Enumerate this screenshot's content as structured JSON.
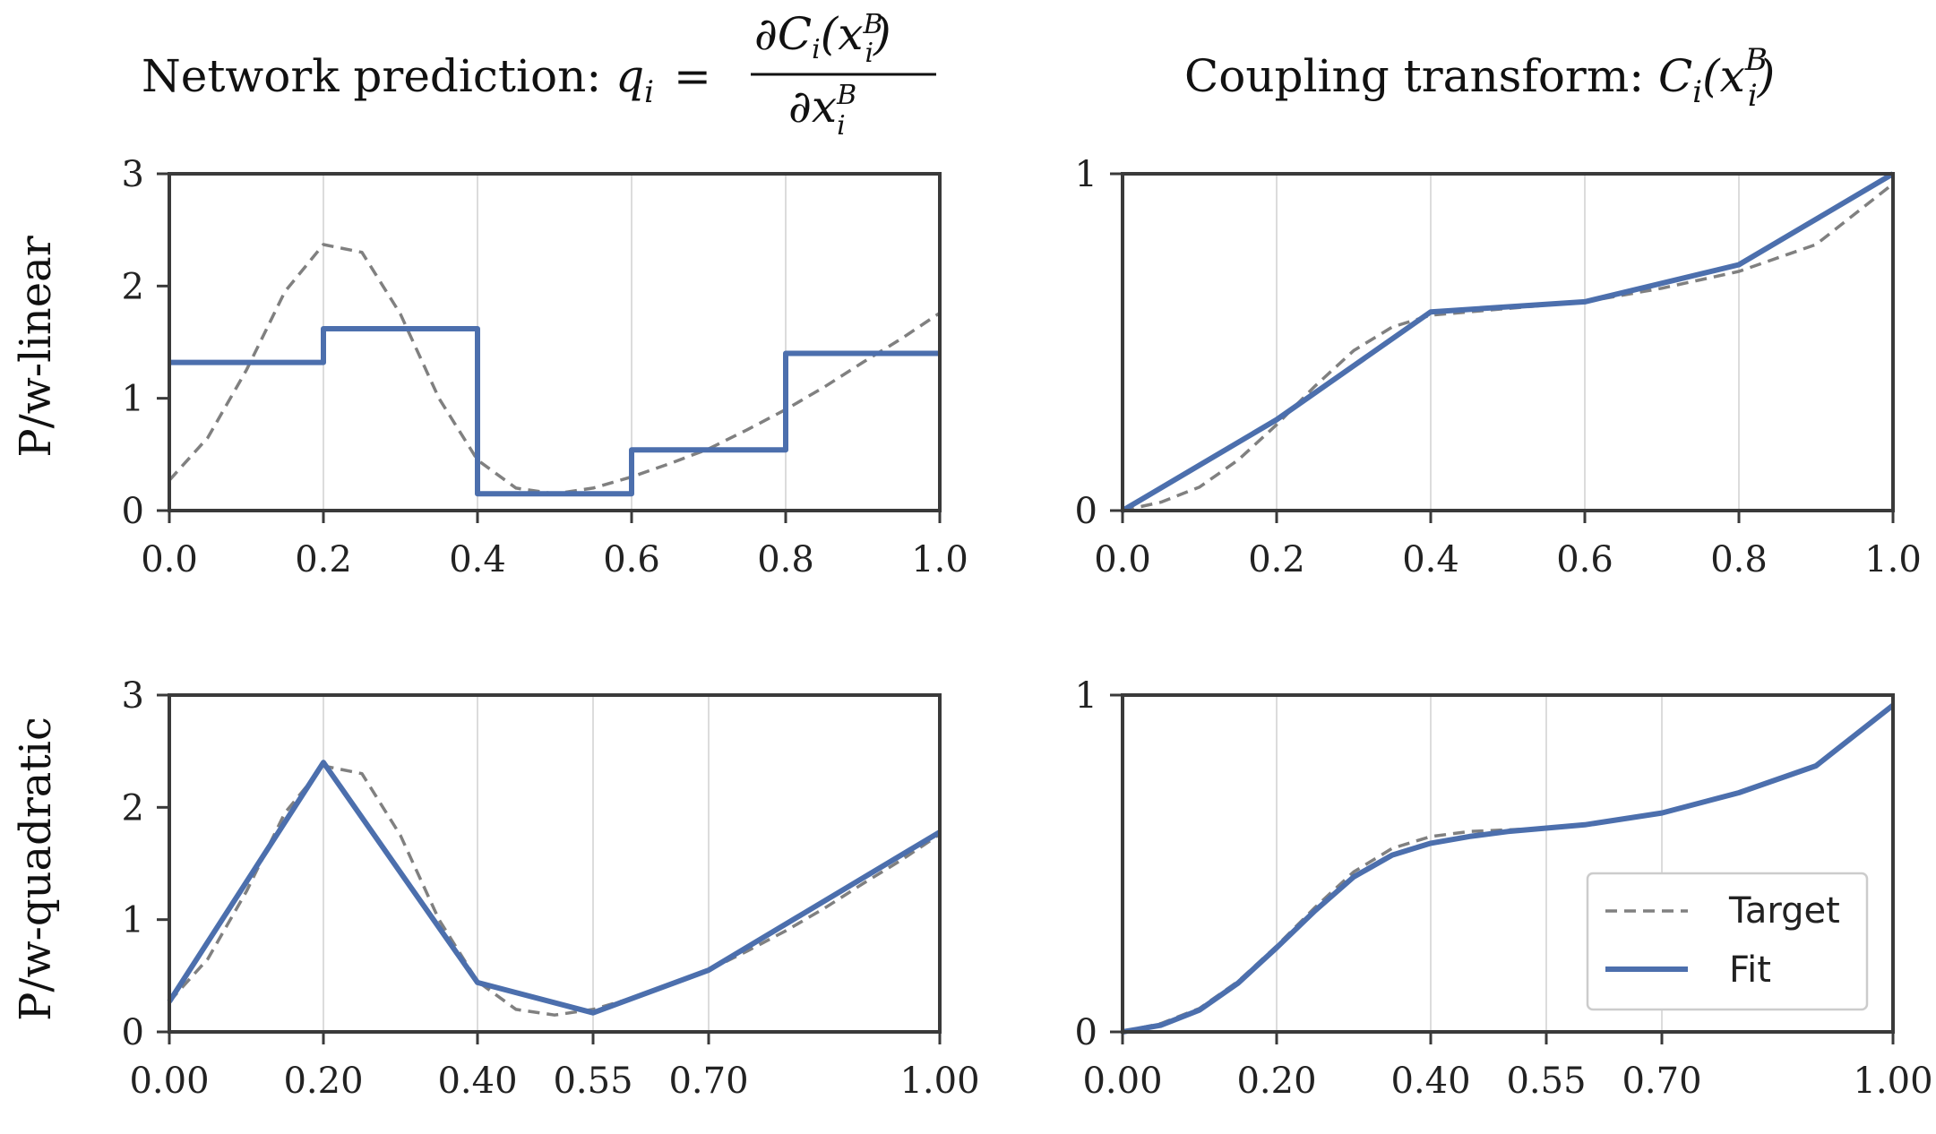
{
  "colors": {
    "fit": "#4c6fad",
    "target": "#808080",
    "axis": "#3a3a3a",
    "grid": "#dcdcdc"
  },
  "titles": {
    "left_prefix": "Network prediction: ",
    "left_lhs": "q",
    "left_sub": "i",
    "left_eq": "=",
    "left_num": "∂C",
    "left_num_sub": "i",
    "left_num_x": "(x",
    "left_num_sup": "B",
    "left_num_xsub": "i",
    "left_num_close": ")",
    "left_den": "∂x",
    "left_den_sup": "B",
    "left_den_sub": "i",
    "right_prefix": "Coupling transform: ",
    "right_c": "C",
    "right_c_sub": "i",
    "right_open": "(x",
    "right_sup": "B",
    "right_xsub": "i",
    "right_close": ")"
  },
  "row_labels": {
    "top": "P/w-linear",
    "bottom": "P/w-quadratic"
  },
  "legend": {
    "target_label": "Target",
    "fit_label": "Fit"
  },
  "chart_data": [
    {
      "id": "pl-pdf",
      "type": "line",
      "xlim": [
        0,
        1
      ],
      "ylim": [
        0,
        3
      ],
      "xticks": [
        0,
        0.2,
        0.4,
        0.6,
        0.8,
        1.0
      ],
      "xtick_labels": [
        "0.0",
        "0.2",
        "0.4",
        "0.6",
        "0.8",
        "1.0"
      ],
      "yticks": [
        0,
        1,
        2,
        3
      ],
      "ytick_labels": [
        "0",
        "1",
        "2",
        "3"
      ],
      "grid_x": [
        0.2,
        0.4,
        0.6,
        0.8
      ],
      "series": [
        {
          "name": "Target",
          "style": "dashed",
          "x": [
            0.0,
            0.05,
            0.1,
            0.15,
            0.2,
            0.25,
            0.3,
            0.35,
            0.4,
            0.45,
            0.5,
            0.55,
            0.6,
            0.65,
            0.7,
            0.75,
            0.8,
            0.85,
            0.9,
            0.95,
            1.0
          ],
          "y": [
            0.27,
            0.65,
            1.25,
            1.95,
            2.37,
            2.3,
            1.75,
            1.0,
            0.45,
            0.2,
            0.15,
            0.2,
            0.3,
            0.42,
            0.55,
            0.72,
            0.9,
            1.1,
            1.32,
            1.53,
            1.76
          ]
        },
        {
          "name": "Fit",
          "style": "solid",
          "x": [
            0.0,
            0.2,
            0.2,
            0.4,
            0.4,
            0.6,
            0.6,
            0.8,
            0.8,
            1.0
          ],
          "y": [
            1.32,
            1.32,
            1.62,
            1.62,
            0.15,
            0.15,
            0.54,
            0.54,
            1.4,
            1.4
          ]
        }
      ]
    },
    {
      "id": "pl-cdf",
      "type": "line",
      "xlim": [
        0,
        1
      ],
      "ylim": [
        0,
        1
      ],
      "xticks": [
        0,
        0.2,
        0.4,
        0.6,
        0.8,
        1.0
      ],
      "xtick_labels": [
        "0.0",
        "0.2",
        "0.4",
        "0.6",
        "0.8",
        "1.0"
      ],
      "yticks": [
        0,
        1
      ],
      "ytick_labels": [
        "0",
        "1"
      ],
      "grid_x": [
        0.2,
        0.4,
        0.6,
        0.8
      ],
      "series": [
        {
          "name": "Target",
          "style": "dashed",
          "x": [
            0.0,
            0.05,
            0.1,
            0.15,
            0.2,
            0.25,
            0.3,
            0.35,
            0.4,
            0.5,
            0.6,
            0.7,
            0.8,
            0.9,
            1.0
          ],
          "y": [
            0.0,
            0.025,
            0.07,
            0.15,
            0.255,
            0.37,
            0.475,
            0.545,
            0.58,
            0.6,
            0.62,
            0.66,
            0.71,
            0.79,
            0.97
          ]
        },
        {
          "name": "Fit",
          "style": "solid",
          "x": [
            0.0,
            0.2,
            0.4,
            0.6,
            0.8,
            1.0
          ],
          "y": [
            0.0,
            0.27,
            0.59,
            0.62,
            0.73,
            1.0
          ]
        }
      ]
    },
    {
      "id": "pq-pdf",
      "type": "line",
      "xlim": [
        0,
        1
      ],
      "ylim": [
        0,
        3
      ],
      "xticks": [
        0,
        0.2,
        0.4,
        0.55,
        0.7,
        1.0
      ],
      "xtick_labels": [
        "0.00",
        "0.20",
        "0.40",
        "0.55",
        "0.70",
        "1.00"
      ],
      "yticks": [
        0,
        1,
        2,
        3
      ],
      "ytick_labels": [
        "0",
        "1",
        "2",
        "3"
      ],
      "grid_x": [
        0.2,
        0.4,
        0.55,
        0.7
      ],
      "series": [
        {
          "name": "Target",
          "style": "dashed",
          "x": [
            0.0,
            0.05,
            0.1,
            0.15,
            0.2,
            0.25,
            0.3,
            0.35,
            0.4,
            0.45,
            0.5,
            0.55,
            0.6,
            0.65,
            0.7,
            0.75,
            0.8,
            0.85,
            0.9,
            0.95,
            1.0
          ],
          "y": [
            0.27,
            0.65,
            1.25,
            1.95,
            2.37,
            2.3,
            1.75,
            1.0,
            0.45,
            0.2,
            0.15,
            0.2,
            0.3,
            0.42,
            0.55,
            0.72,
            0.9,
            1.1,
            1.32,
            1.53,
            1.76
          ]
        },
        {
          "name": "Fit",
          "style": "solid",
          "x": [
            0.0,
            0.2,
            0.4,
            0.55,
            0.7,
            1.0
          ],
          "y": [
            0.27,
            2.4,
            0.44,
            0.17,
            0.55,
            1.78
          ]
        }
      ]
    },
    {
      "id": "pq-cdf",
      "type": "line",
      "xlim": [
        0,
        1
      ],
      "ylim": [
        0,
        1
      ],
      "xticks": [
        0,
        0.2,
        0.4,
        0.55,
        0.7,
        1.0
      ],
      "xtick_labels": [
        "0.00",
        "0.20",
        "0.40",
        "0.55",
        "0.70",
        "1.00"
      ],
      "yticks": [
        0,
        1
      ],
      "ytick_labels": [
        "0",
        "1"
      ],
      "grid_x": [
        0.2,
        0.4,
        0.55,
        0.7
      ],
      "series": [
        {
          "name": "Target",
          "style": "dashed",
          "x": [
            0.0,
            0.05,
            0.1,
            0.15,
            0.2,
            0.25,
            0.3,
            0.35,
            0.4,
            0.45,
            0.5,
            0.55,
            0.6,
            0.7,
            0.8,
            0.9,
            1.0
          ],
          "y": [
            0.0,
            0.025,
            0.07,
            0.15,
            0.255,
            0.37,
            0.475,
            0.545,
            0.58,
            0.595,
            0.6,
            0.605,
            0.615,
            0.65,
            0.71,
            0.79,
            0.97
          ]
        },
        {
          "name": "Fit",
          "style": "solid",
          "x": [
            0.0,
            0.05,
            0.1,
            0.15,
            0.2,
            0.25,
            0.3,
            0.35,
            0.4,
            0.45,
            0.5,
            0.55,
            0.6,
            0.7,
            0.8,
            0.9,
            1.0
          ],
          "y": [
            0.0,
            0.02,
            0.065,
            0.145,
            0.25,
            0.36,
            0.46,
            0.525,
            0.56,
            0.58,
            0.595,
            0.605,
            0.615,
            0.65,
            0.71,
            0.79,
            0.97
          ]
        }
      ]
    }
  ]
}
